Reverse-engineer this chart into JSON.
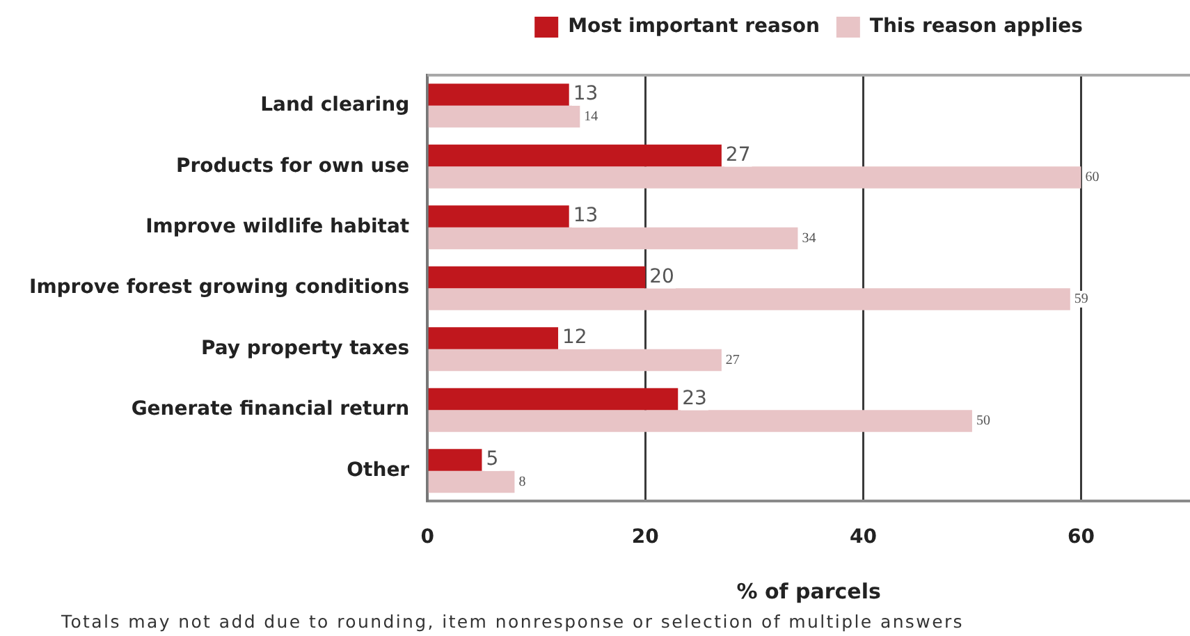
{
  "chart_data": {
    "type": "bar",
    "orientation": "horizontal",
    "categories": [
      "Land clearing",
      "Products for own use",
      "Improve wildlife habitat",
      "Improve forest growing conditions",
      "Pay property taxes",
      "Generate financial return",
      "Other"
    ],
    "series": [
      {
        "name": "Most important reason",
        "color": "#c0171d",
        "values": [
          13,
          27,
          13,
          20,
          12,
          23,
          5
        ]
      },
      {
        "name": "This reason applies",
        "color": "#e8c4c6",
        "values": [
          14,
          60,
          34,
          59,
          27,
          50,
          8
        ]
      }
    ],
    "xlabel": "% of parcels",
    "xlim": [
      0,
      70
    ],
    "xticks": [
      0,
      20,
      40,
      60
    ],
    "grid": "x",
    "legend": "top",
    "data_labels": true,
    "annotations": [
      "Totals may not add due to rounding, item nonresponse or selection of multiple answers"
    ]
  }
}
